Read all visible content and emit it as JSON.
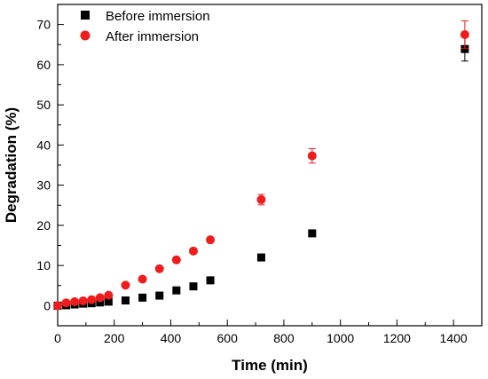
{
  "chart_data": {
    "type": "scatter",
    "xlabel": "Time (min)",
    "ylabel": "Degradation (%)",
    "xlim": [
      0,
      1500
    ],
    "ylim": [
      -5,
      75
    ],
    "xticks": [
      0,
      200,
      400,
      600,
      800,
      1000,
      1200,
      1400
    ],
    "yticks": [
      0,
      10,
      20,
      30,
      40,
      50,
      60,
      70
    ],
    "x_minor_step": 100,
    "y_minor_step": 5,
    "grid": false,
    "legend_position": "top-left",
    "series": [
      {
        "name": "Before immersion",
        "marker": "square",
        "color": "#000000",
        "points": [
          {
            "x": 0,
            "y": 0
          },
          {
            "x": 30,
            "y": 0.1
          },
          {
            "x": 60,
            "y": 0.3
          },
          {
            "x": 90,
            "y": 0.5
          },
          {
            "x": 120,
            "y": 0.6
          },
          {
            "x": 150,
            "y": 0.8
          },
          {
            "x": 180,
            "y": 1.0
          },
          {
            "x": 240,
            "y": 1.3
          },
          {
            "x": 300,
            "y": 2.0
          },
          {
            "x": 360,
            "y": 2.5
          },
          {
            "x": 420,
            "y": 3.8
          },
          {
            "x": 480,
            "y": 4.8
          },
          {
            "x": 540,
            "y": 6.3
          },
          {
            "x": 720,
            "y": 12.0
          },
          {
            "x": 900,
            "y": 18.0
          },
          {
            "x": 1440,
            "y": 63.9,
            "err": 3.0
          }
        ]
      },
      {
        "name": "After immersion",
        "marker": "circle",
        "color": "#ee1c1c",
        "points": [
          {
            "x": 0,
            "y": 0
          },
          {
            "x": 30,
            "y": 0.7
          },
          {
            "x": 60,
            "y": 1.0
          },
          {
            "x": 90,
            "y": 1.2
          },
          {
            "x": 120,
            "y": 1.5
          },
          {
            "x": 150,
            "y": 2.0
          },
          {
            "x": 180,
            "y": 2.6
          },
          {
            "x": 240,
            "y": 5.1
          },
          {
            "x": 300,
            "y": 6.6
          },
          {
            "x": 360,
            "y": 9.2
          },
          {
            "x": 420,
            "y": 11.4
          },
          {
            "x": 480,
            "y": 13.6
          },
          {
            "x": 540,
            "y": 16.4
          },
          {
            "x": 720,
            "y": 26.4,
            "err": 1.3
          },
          {
            "x": 900,
            "y": 37.3,
            "err": 1.8
          },
          {
            "x": 1440,
            "y": 67.5,
            "err": 3.4
          }
        ]
      }
    ]
  }
}
